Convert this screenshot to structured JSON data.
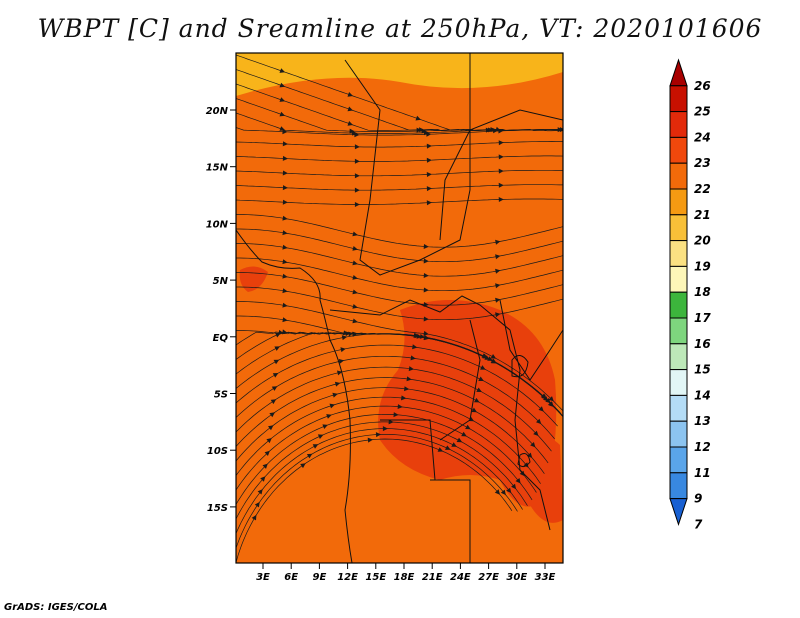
{
  "title": "WBPT [C] and Sreamline at 250hPa, VT: 2020101606",
  "credit": "GrADS: IGES/COLA",
  "map": {
    "lat_ticks": [
      "20N",
      "15N",
      "10N",
      "5N",
      "EQ",
      "5S",
      "10S",
      "15S"
    ],
    "lon_ticks": [
      "3E",
      "6E",
      "9E",
      "12E",
      "15E",
      "18E",
      "21E",
      "24E",
      "27E",
      "30E",
      "33E"
    ],
    "field_colors": {
      "base": "#f26a0a",
      "warm": "#e8400c",
      "cool": "#f59a12",
      "north": "#f8b41a"
    }
  },
  "colorbar": {
    "labels": [
      "26",
      "25",
      "24",
      "23",
      "22",
      "21",
      "20",
      "19",
      "18",
      "17",
      "16",
      "15",
      "14",
      "13",
      "12",
      "11",
      "9",
      "7"
    ],
    "colors": [
      "#a80000",
      "#c81000",
      "#e22a0a",
      "#f0480c",
      "#f26a0a",
      "#f59a12",
      "#f8c038",
      "#fbe182",
      "#fdf6b8",
      "#3cb53c",
      "#7ed67e",
      "#bde8b8",
      "#e2f6f6",
      "#b4dcf6",
      "#8cc4f0",
      "#5aa5ea",
      "#3888e0",
      "#1860d2"
    ]
  }
}
